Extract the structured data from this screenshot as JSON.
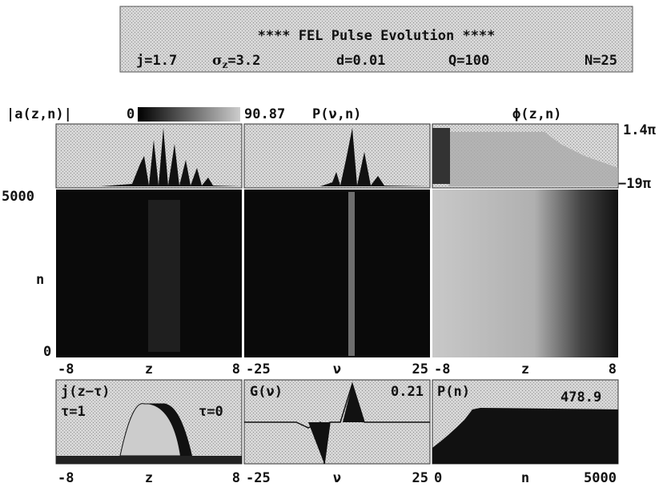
{
  "header": {
    "title": "**** FEL Pulse Evolution ****",
    "params": [
      "j=1.7",
      "d=0.01",
      "Q=100",
      "N=25"
    ],
    "sigma": {
      "symbol": "σ",
      "sub": "z",
      "rest": "=3.2"
    }
  },
  "panels": {
    "amplitude": {
      "label": "|a(z,n)|",
      "colorbar_min": "0",
      "colorbar_max": "90.87",
      "x_axis": [
        "-8",
        "z",
        "8"
      ]
    },
    "spectrum": {
      "label": "P(ν,n)",
      "x_axis": [
        "-25",
        "ν",
        "25"
      ]
    },
    "phase": {
      "label": "ϕ(z,n)",
      "range_top": "1.4π",
      "range_bottom": "−19π",
      "x_axis": [
        "-8",
        "z",
        "8"
      ]
    },
    "n_axis": {
      "top": "5000",
      "label": "n",
      "bottom": "0"
    },
    "current": {
      "label": "j(z−τ)",
      "tau_left": "τ=1",
      "tau_right": "τ=0",
      "x_axis": [
        "-8",
        "z",
        "8"
      ]
    },
    "gain": {
      "label": "G(ν)",
      "max": "0.21",
      "x_axis": [
        "-25",
        "ν",
        "25"
      ]
    },
    "power": {
      "label": "P(n)",
      "max": "478.9",
      "x_axis": [
        "0",
        "n",
        "5000"
      ]
    }
  }
}
